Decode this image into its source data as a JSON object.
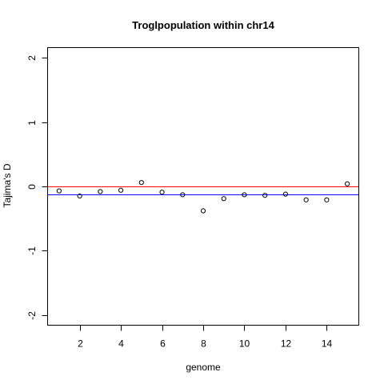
{
  "chart_data": {
    "type": "scatter",
    "title": "Troglpopulation within chr14",
    "xlabel": "genome",
    "ylabel": "Tajima's D",
    "xlim": [
      0.44,
      15.56
    ],
    "ylim": [
      -2.16,
      2.16
    ],
    "x_ticks": [
      2,
      4,
      6,
      8,
      10,
      12,
      14
    ],
    "y_ticks": [
      -2,
      -1,
      0,
      1,
      2
    ],
    "x": [
      1,
      2,
      3,
      4,
      5,
      6,
      7,
      8,
      9,
      10,
      11,
      12,
      13,
      14,
      15
    ],
    "y": [
      -0.07,
      -0.15,
      -0.08,
      -0.06,
      0.06,
      -0.09,
      -0.13,
      -0.38,
      -0.19,
      -0.13,
      -0.14,
      -0.12,
      -0.21,
      -0.21,
      0.04
    ],
    "reference_lines": [
      {
        "y": 0,
        "color": "#ff0000"
      },
      {
        "y": -0.125,
        "color": "#0000ff"
      }
    ],
    "point_color": "#000000",
    "grid": false
  }
}
